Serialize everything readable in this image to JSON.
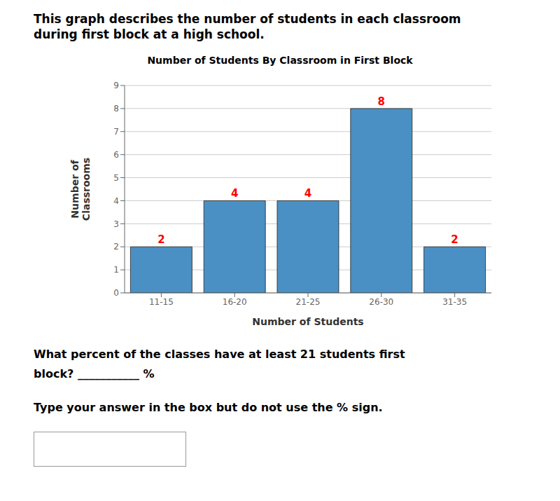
{
  "chart_data": {
    "type": "bar",
    "title": "Number of Students By Classroom in First Block",
    "x_label": "Number of Students",
    "y_label": "Number of\nClassrooms",
    "categories": [
      "11-15",
      "16-20",
      "21-25",
      "26-30",
      "31-35"
    ],
    "values": [
      2,
      4,
      4,
      8,
      2
    ],
    "color": "#4A90C4",
    "ylim": [
      0,
      9
    ],
    "yticks": [
      0,
      1,
      2,
      3,
      4,
      5,
      6,
      7,
      8,
      9
    ],
    "grid": true,
    "data_labels": true,
    "annotations": [
      "This graph describes the number of students in each classroom",
      "during first block at a high school.",
      "What percent of the classes have at least 21 students first",
      "block?  ___________  %",
      "Type your answer in the box but do not use the % sign."
    ]
  }
}
